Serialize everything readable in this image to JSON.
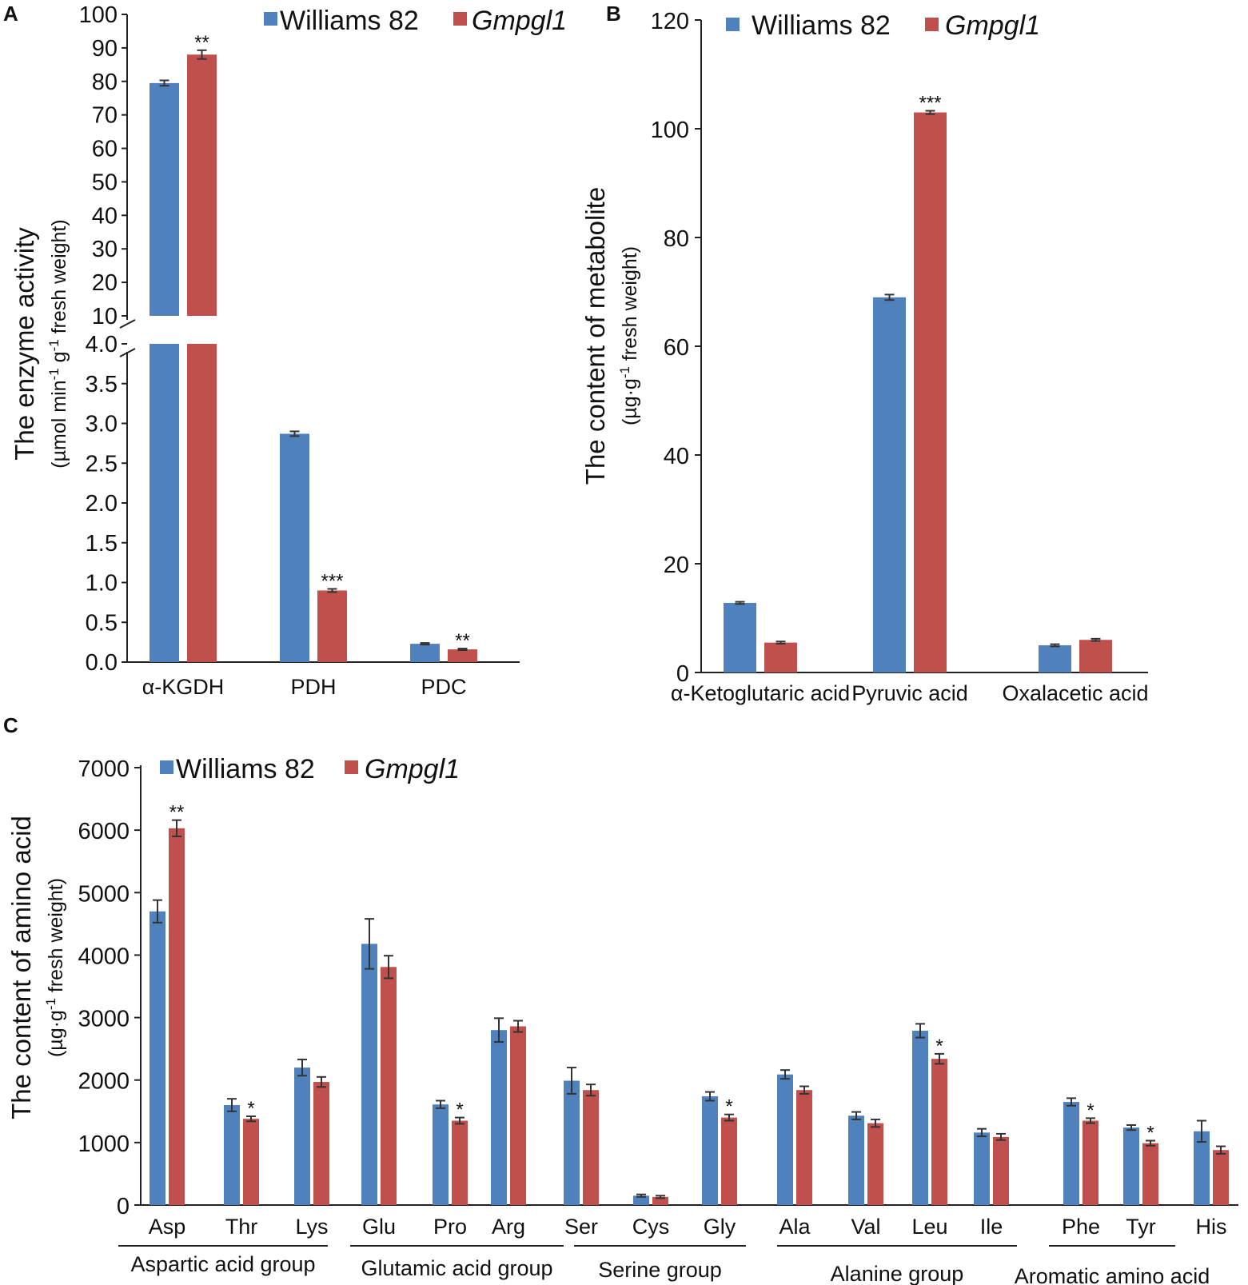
{
  "colors": {
    "williams": "#4f81bd",
    "mutant": "#c0504d",
    "axis": "#222222",
    "error": "#333333"
  },
  "chart_data": [
    {
      "panel": "A",
      "type": "bar",
      "ylabel": "The enzyme activity",
      "yunit": [
        "(µmol min",
        "-1",
        " g",
        "-1",
        " fresh weight)"
      ],
      "legend": [
        "Williams 82",
        "Gmpgl1"
      ],
      "categories": [
        "α-KGDH",
        "PDH",
        "PDC"
      ],
      "series": [
        {
          "name": "Williams 82",
          "values": [
            79.5,
            2.87,
            0.23
          ],
          "errors": [
            0.8,
            0.03,
            0.01
          ]
        },
        {
          "name": "Gmpgl1",
          "values": [
            88.0,
            0.9,
            0.16
          ],
          "errors": [
            1.3,
            0.02,
            0.01
          ]
        }
      ],
      "significance": [
        "**",
        "***",
        "**"
      ],
      "axis_break": {
        "lower_max": 4.0,
        "upper_min": 10,
        "upper_max": 100
      },
      "lower_ticks": [
        "0.0",
        "0.5",
        "1.0",
        "1.5",
        "2.0",
        "2.5",
        "3.0",
        "3.5",
        "4.0"
      ],
      "upper_ticks": [
        "10",
        "20",
        "30",
        "40",
        "50",
        "60",
        "70",
        "80",
        "90",
        "100"
      ]
    },
    {
      "panel": "B",
      "type": "bar",
      "ylabel": "The content of metabolite",
      "yunit": [
        "(µg·g",
        "-1",
        " fresh weight)"
      ],
      "legend": [
        "Williams 82",
        "Gmpgl1"
      ],
      "categories": [
        "α-Ketoglutaric acid",
        "Pyruvic acid",
        "Oxalacetic acid"
      ],
      "series": [
        {
          "name": "Williams 82",
          "values": [
            12.8,
            69.0,
            5.0
          ],
          "errors": [
            0.2,
            0.5,
            0.2
          ]
        },
        {
          "name": "Gmpgl1",
          "values": [
            5.5,
            103.0,
            6.0
          ],
          "errors": [
            0.2,
            0.3,
            0.2
          ]
        }
      ],
      "significance": [
        "",
        "***",
        ""
      ],
      "ylim": [
        0,
        120
      ],
      "ticks": [
        "0",
        "20",
        "40",
        "60",
        "80",
        "100",
        "120"
      ]
    },
    {
      "panel": "C",
      "type": "bar",
      "ylabel": "The content of amino acid",
      "yunit": [
        "(µg·g",
        "-1",
        " fresh weight)"
      ],
      "legend": [
        "Williams 82",
        "Gmpgl1"
      ],
      "categories": [
        "Asp",
        "Thr",
        "Lys",
        "Glu",
        "Pro",
        "Arg",
        "Ser",
        "Cys",
        "Gly",
        "Ala",
        "Val",
        "Leu",
        "Ile",
        "Phe",
        "Tyr",
        "His"
      ],
      "series": [
        {
          "name": "Williams 82",
          "values": [
            4700,
            1600,
            2200,
            4180,
            1610,
            2800,
            1990,
            150,
            1740,
            2090,
            1430,
            2790,
            1160,
            1650,
            1240,
            1180
          ],
          "errors": [
            180,
            100,
            130,
            400,
            60,
            190,
            210,
            20,
            70,
            70,
            60,
            110,
            60,
            60,
            40,
            170
          ]
        },
        {
          "name": "Gmpgl1",
          "values": [
            6030,
            1380,
            1970,
            3810,
            1350,
            2860,
            1840,
            130,
            1400,
            1840,
            1310,
            2340,
            1090,
            1350,
            990,
            880
          ],
          "errors": [
            130,
            40,
            80,
            180,
            50,
            90,
            90,
            20,
            50,
            60,
            60,
            80,
            50,
            40,
            40,
            60
          ]
        }
      ],
      "significance": [
        "**",
        "*",
        "",
        "",
        "*",
        "",
        "",
        "",
        "*",
        "",
        "",
        "*",
        "",
        "*",
        "*",
        ""
      ],
      "ylim": [
        0,
        7000
      ],
      "ticks": [
        "0",
        "1000",
        "2000",
        "3000",
        "4000",
        "5000",
        "6000",
        "7000"
      ],
      "groups": [
        {
          "label": "Aspartic acid group",
          "first": 0,
          "last": 2
        },
        {
          "label": "Glutamic acid group",
          "first": 3,
          "last": 5
        },
        {
          "label": "Serine group",
          "first": 6,
          "last": 8
        },
        {
          "label": "Alanine group",
          "first": 9,
          "last": 12
        },
        {
          "label": "Aromatic amino acid",
          "first": 13,
          "last": 15
        }
      ]
    }
  ]
}
